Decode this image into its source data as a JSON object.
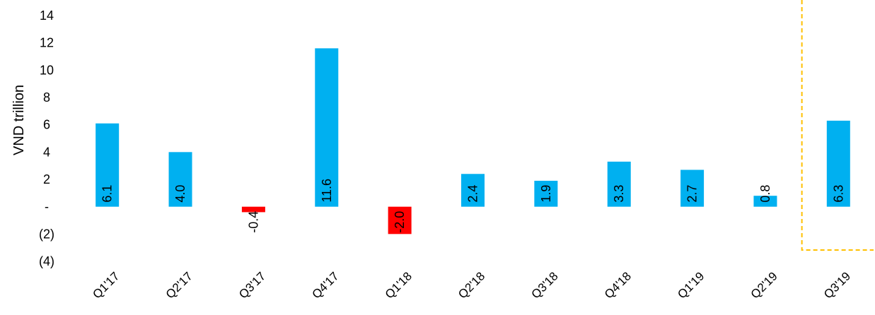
{
  "chart_data": {
    "type": "bar",
    "ylabel": "VND trillion",
    "categories": [
      "Q1'17",
      "Q2'17",
      "Q3'17",
      "Q4'17",
      "Q1'18",
      "Q2'18",
      "Q3'18",
      "Q4'18",
      "Q1'19",
      "Q2'19",
      "Q3'19"
    ],
    "values": [
      6.1,
      4.0,
      -0.4,
      11.6,
      -2.0,
      2.4,
      1.9,
      3.3,
      2.7,
      0.8,
      6.3
    ],
    "data_labels": [
      "6.1",
      "4.0",
      "-0.4",
      "11.6",
      "-2.0",
      "2.4",
      "1.9",
      "3.3",
      "2.7",
      "0.8",
      "6.3"
    ],
    "ylim": [
      -4,
      14
    ],
    "yticks": [
      14,
      12,
      10,
      8,
      6,
      4,
      2,
      0,
      -2,
      -4
    ],
    "ytick_labels": [
      "14",
      "12",
      "10",
      "8",
      "6",
      "4",
      "2",
      "-",
      "(2)",
      "(4)"
    ],
    "grid": false,
    "highlight_category": "Q3'19",
    "colors": {
      "positive": "#00B0F0",
      "negative": "#FF0000",
      "highlight_box": "#FFC000"
    }
  }
}
